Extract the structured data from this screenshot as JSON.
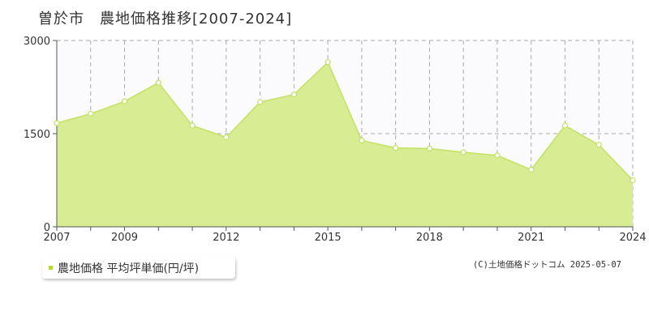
{
  "title": "曽於市　農地価格推移[2007-2024]",
  "legend": {
    "label": "農地価格 平均坪単価(円/坪)"
  },
  "credit": "(C)土地価格ドットコム 2025-05-07",
  "colors": {
    "fill": "#d8ec94",
    "line": "#c3e264",
    "marker_fill": "#ffffff",
    "legend_marker": "#b5d83f",
    "grid": "#aaaaaa",
    "axis": "#555555"
  },
  "chart_data": {
    "type": "area",
    "x": [
      2007,
      2008,
      2009,
      2010,
      2011,
      2012,
      2013,
      2014,
      2015,
      2016,
      2017,
      2018,
      2019,
      2020,
      2021,
      2022,
      2023,
      2024
    ],
    "series": [
      {
        "name": "農地価格 平均坪単価(円/坪)",
        "values": [
          1670,
          1820,
          2020,
          2320,
          1630,
          1440,
          2010,
          2130,
          2650,
          1390,
          1270,
          1260,
          1200,
          1150,
          920,
          1630,
          1320,
          750
        ]
      }
    ],
    "ylim": [
      0,
      3000
    ],
    "yticks": [
      "0",
      "1500",
      "3000"
    ],
    "xticks": [
      "2007",
      "2009",
      "2012",
      "2015",
      "2018",
      "2021",
      "2024"
    ],
    "xlim": [
      2007,
      2024
    ],
    "grid": true
  }
}
